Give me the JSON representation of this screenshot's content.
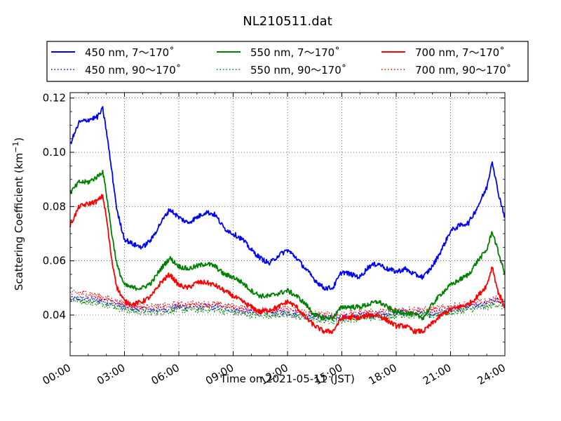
{
  "chart_data": {
    "type": "line",
    "title": "NL210511.dat",
    "xlabel": "Time on 2021-05-11 (JST)",
    "ylabel_main": "Scattering Coefficient (km",
    "ylabel_sup": "−1",
    "ylabel_tail": ")",
    "xlim": [
      0,
      24
    ],
    "ylim": [
      0.025,
      0.122
    ],
    "x_ticks": [
      {
        "value": 0,
        "label": "00:00"
      },
      {
        "value": 3,
        "label": "03:00"
      },
      {
        "value": 6,
        "label": "06:00"
      },
      {
        "value": 9,
        "label": "09:00"
      },
      {
        "value": 12,
        "label": "12:00"
      },
      {
        "value": 15,
        "label": "15:00"
      },
      {
        "value": 18,
        "label": "18:00"
      },
      {
        "value": 21,
        "label": "21:00"
      },
      {
        "value": 24,
        "label": "24:00"
      }
    ],
    "y_ticks": [
      {
        "value": 0.04,
        "label": "0.04"
      },
      {
        "value": 0.06,
        "label": "0.06"
      },
      {
        "value": 0.08,
        "label": "0.08"
      },
      {
        "value": 0.1,
        "label": "0.10"
      },
      {
        "value": 0.12,
        "label": "0.12"
      }
    ],
    "grid": true,
    "legend_position": "top, above plot",
    "series": [
      {
        "name": "450 nm, 7～170˚",
        "color": "#0000ff",
        "style": "solid",
        "x": [
          0,
          0.5,
          1,
          1.5,
          1.8,
          2,
          2.3,
          2.6,
          3,
          3.5,
          4,
          4.5,
          5,
          5.5,
          6,
          6.5,
          7,
          7.5,
          8,
          8.5,
          9,
          9.5,
          10,
          10.5,
          11,
          11.5,
          12,
          12.5,
          13,
          13.5,
          14,
          14.5,
          15,
          15.5,
          16,
          16.5,
          17,
          17.5,
          18,
          18.5,
          19,
          19.5,
          20,
          20.5,
          21,
          21.5,
          22,
          22.5,
          23,
          23.3,
          23.6,
          24
        ],
        "y": [
          0.103,
          0.111,
          0.112,
          0.113,
          0.116,
          0.108,
          0.093,
          0.078,
          0.068,
          0.066,
          0.065,
          0.068,
          0.074,
          0.079,
          0.076,
          0.074,
          0.076,
          0.078,
          0.077,
          0.072,
          0.07,
          0.068,
          0.064,
          0.061,
          0.059,
          0.062,
          0.064,
          0.061,
          0.057,
          0.053,
          0.05,
          0.05,
          0.056,
          0.055,
          0.054,
          0.058,
          0.059,
          0.057,
          0.056,
          0.057,
          0.055,
          0.054,
          0.058,
          0.064,
          0.071,
          0.073,
          0.074,
          0.08,
          0.087,
          0.097,
          0.086,
          0.076
        ]
      },
      {
        "name": "450 nm, 90～170˚",
        "color": "#0000ff",
        "style": "dotted",
        "x": [
          0,
          1,
          2,
          3,
          4,
          5,
          6,
          7,
          8,
          9,
          10,
          11,
          12,
          13,
          14,
          15,
          16,
          17,
          18,
          19,
          20,
          21,
          22,
          23,
          23.5,
          24
        ],
        "y": [
          0.046,
          0.046,
          0.045,
          0.043,
          0.042,
          0.042,
          0.043,
          0.043,
          0.043,
          0.042,
          0.041,
          0.041,
          0.041,
          0.04,
          0.039,
          0.039,
          0.04,
          0.04,
          0.041,
          0.041,
          0.04,
          0.042,
          0.043,
          0.044,
          0.046,
          0.044
        ]
      },
      {
        "name": "550 nm, 7～170˚",
        "color": "#008000",
        "style": "solid",
        "x": [
          0,
          0.5,
          1,
          1.5,
          1.8,
          2,
          2.3,
          2.6,
          3,
          3.5,
          4,
          4.5,
          5,
          5.5,
          6,
          6.5,
          7,
          7.5,
          8,
          8.5,
          9,
          9.5,
          10,
          10.5,
          11,
          11.5,
          12,
          12.5,
          13,
          13.5,
          14,
          14.5,
          15,
          15.5,
          16,
          16.5,
          17,
          17.5,
          18,
          18.5,
          19,
          19.5,
          20,
          20.5,
          21,
          21.5,
          22,
          22.5,
          23,
          23.3,
          23.6,
          24
        ],
        "y": [
          0.085,
          0.089,
          0.089,
          0.091,
          0.093,
          0.085,
          0.07,
          0.058,
          0.051,
          0.05,
          0.05,
          0.052,
          0.057,
          0.061,
          0.058,
          0.057,
          0.058,
          0.059,
          0.058,
          0.055,
          0.054,
          0.052,
          0.049,
          0.047,
          0.047,
          0.048,
          0.049,
          0.047,
          0.044,
          0.04,
          0.039,
          0.039,
          0.043,
          0.043,
          0.043,
          0.044,
          0.045,
          0.043,
          0.041,
          0.041,
          0.04,
          0.039,
          0.044,
          0.048,
          0.051,
          0.053,
          0.055,
          0.06,
          0.064,
          0.071,
          0.064,
          0.055
        ]
      },
      {
        "name": "550 nm, 90～170˚",
        "color": "#008000",
        "style": "dotted",
        "x": [
          0,
          1,
          2,
          3,
          4,
          5,
          6,
          7,
          8,
          9,
          10,
          11,
          12,
          13,
          14,
          15,
          16,
          17,
          18,
          19,
          20,
          21,
          22,
          23,
          23.5,
          24
        ],
        "y": [
          0.046,
          0.045,
          0.044,
          0.042,
          0.041,
          0.041,
          0.042,
          0.042,
          0.042,
          0.041,
          0.04,
          0.04,
          0.04,
          0.039,
          0.038,
          0.038,
          0.039,
          0.039,
          0.04,
          0.04,
          0.04,
          0.041,
          0.042,
          0.043,
          0.044,
          0.043
        ]
      },
      {
        "name": "700 nm, 7～170˚",
        "color": "#ff0000",
        "style": "solid",
        "x": [
          0,
          0.5,
          1,
          1.5,
          1.8,
          2,
          2.3,
          2.6,
          3,
          3.5,
          4,
          4.5,
          5,
          5.5,
          6,
          6.5,
          7,
          7.5,
          8,
          8.5,
          9,
          9.5,
          10,
          10.5,
          11,
          11.5,
          12,
          12.5,
          13,
          13.5,
          14,
          14.5,
          15,
          15.5,
          16,
          16.5,
          17,
          17.5,
          18,
          18.5,
          19,
          19.5,
          20,
          20.5,
          21,
          21.5,
          22,
          22.5,
          23,
          23.3,
          23.6,
          24
        ],
        "y": [
          0.073,
          0.08,
          0.081,
          0.082,
          0.084,
          0.076,
          0.06,
          0.05,
          0.045,
          0.044,
          0.045,
          0.047,
          0.052,
          0.055,
          0.051,
          0.05,
          0.052,
          0.052,
          0.051,
          0.049,
          0.047,
          0.045,
          0.043,
          0.041,
          0.042,
          0.043,
          0.045,
          0.043,
          0.039,
          0.036,
          0.034,
          0.034,
          0.039,
          0.039,
          0.039,
          0.04,
          0.04,
          0.038,
          0.036,
          0.036,
          0.034,
          0.034,
          0.037,
          0.04,
          0.042,
          0.043,
          0.044,
          0.047,
          0.051,
          0.058,
          0.049,
          0.043
        ]
      },
      {
        "name": "700 nm, 90～170˚",
        "color": "#ff0000",
        "style": "dotted",
        "x": [
          0,
          1,
          2,
          3,
          4,
          5,
          6,
          7,
          8,
          9,
          10,
          11,
          12,
          13,
          14,
          15,
          16,
          17,
          18,
          19,
          20,
          21,
          22,
          23,
          23.5,
          24
        ],
        "y": [
          0.048,
          0.048,
          0.046,
          0.044,
          0.043,
          0.043,
          0.044,
          0.044,
          0.044,
          0.043,
          0.042,
          0.042,
          0.042,
          0.041,
          0.04,
          0.04,
          0.041,
          0.041,
          0.042,
          0.042,
          0.042,
          0.043,
          0.044,
          0.045,
          0.046,
          0.045
        ]
      }
    ]
  }
}
